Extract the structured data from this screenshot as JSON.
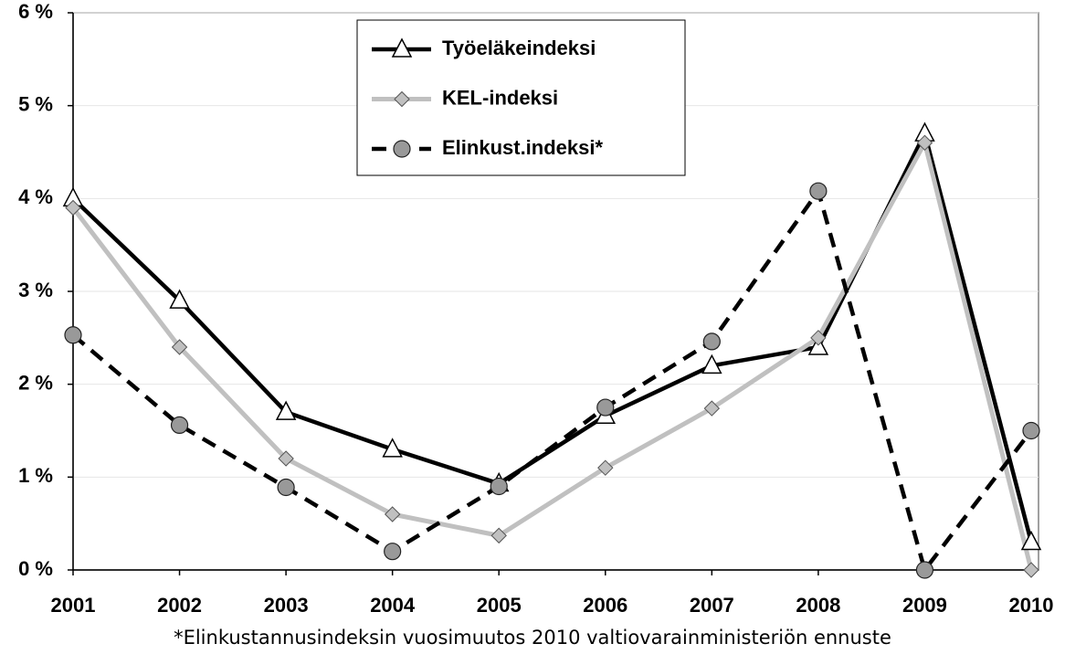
{
  "chart_data": {
    "type": "line",
    "categories": [
      "2001",
      "2002",
      "2003",
      "2004",
      "2005",
      "2006",
      "2007",
      "2008",
      "2009",
      "2010"
    ],
    "series": [
      {
        "name": "Työeläkeindeksi",
        "color": "#000000",
        "marker": "triangle",
        "line_style": "solid",
        "values": [
          4.0,
          2.9,
          1.7,
          1.3,
          0.93,
          1.66,
          2.2,
          2.4,
          4.7,
          0.3
        ]
      },
      {
        "name": "KEL-indeksi",
        "color": "#c0c0c0",
        "marker": "diamond",
        "line_style": "solid",
        "values": [
          3.9,
          2.4,
          1.2,
          0.6,
          0.37,
          1.1,
          1.74,
          2.5,
          4.6,
          0.0
        ]
      },
      {
        "name": "Elinkust.indeksi*",
        "color": "#000000",
        "marker": "circle",
        "line_style": "dashed",
        "values": [
          2.53,
          1.56,
          0.89,
          0.2,
          0.9,
          1.75,
          2.46,
          4.08,
          0.0,
          1.5
        ]
      }
    ],
    "ylim": [
      0,
      6
    ],
    "yticks": [
      {
        "value": 0,
        "label": "0 %"
      },
      {
        "value": 1,
        "label": "1 %"
      },
      {
        "value": 2,
        "label": "2 %"
      },
      {
        "value": 3,
        "label": "3 %"
      },
      {
        "value": 4,
        "label": "4 %"
      },
      {
        "value": 5,
        "label": "5 %"
      },
      {
        "value": 6,
        "label": "6 %"
      }
    ],
    "grid": true,
    "legend": "top",
    "footnote": "*Elinkustannusindeksin vuosimuutos  2010 valtiovarainministeriön ennuste"
  }
}
